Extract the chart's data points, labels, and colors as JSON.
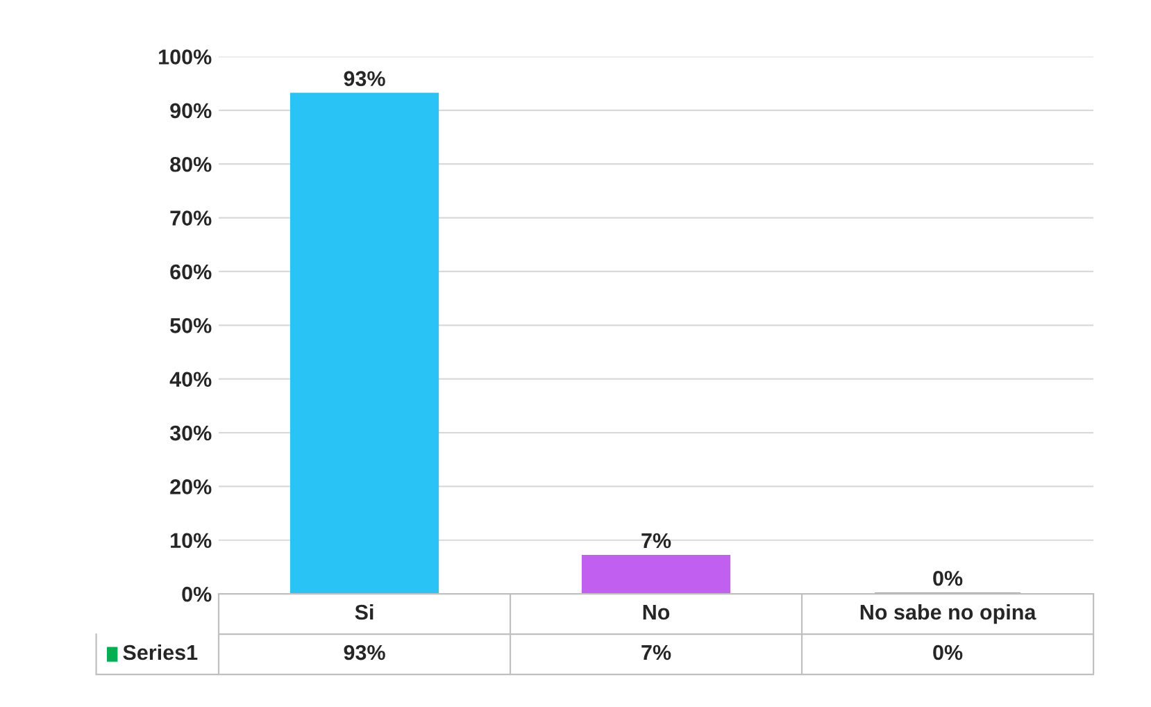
{
  "chart_data": {
    "type": "bar",
    "categories": [
      "Si",
      "No",
      "No sabe no opina"
    ],
    "series": [
      {
        "name": "Series1",
        "color": "#00b050",
        "values": [
          93,
          7,
          0
        ],
        "colors": [
          "#29c3f5",
          "#c15ff0",
          "#8fbf5a"
        ],
        "value_labels": [
          "93%",
          "7%",
          "0%"
        ]
      }
    ],
    "ylim": [
      0,
      100
    ],
    "yticks": [
      {
        "value": 0,
        "label": "0%"
      },
      {
        "value": 10,
        "label": "10%"
      },
      {
        "value": 20,
        "label": "20%"
      },
      {
        "value": 30,
        "label": "30%"
      },
      {
        "value": 40,
        "label": "40%"
      },
      {
        "value": 50,
        "label": "50%"
      },
      {
        "value": 60,
        "label": "60%"
      },
      {
        "value": 70,
        "label": "70%"
      },
      {
        "value": 80,
        "label": "80%"
      },
      {
        "value": 90,
        "label": "90%"
      },
      {
        "value": 100,
        "label": "100%"
      }
    ],
    "grid": "y"
  }
}
